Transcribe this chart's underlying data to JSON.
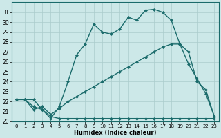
{
  "title": "",
  "xlabel": "Humidex (Indice chaleur)",
  "xlim": [
    -0.5,
    23.5
  ],
  "ylim": [
    20,
    32
  ],
  "xticks": [
    0,
    1,
    2,
    3,
    4,
    5,
    6,
    7,
    8,
    9,
    10,
    11,
    12,
    13,
    14,
    15,
    16,
    17,
    18,
    19,
    20,
    21,
    22,
    23
  ],
  "yticks": [
    20,
    21,
    22,
    23,
    24,
    25,
    26,
    27,
    28,
    29,
    30,
    31
  ],
  "bg_color": "#cce8e8",
  "grid_color": "#aacccc",
  "line_color": "#1a6b6b",
  "line1_x": [
    0,
    1,
    2,
    3,
    4,
    5,
    6,
    7,
    8,
    9,
    10,
    11,
    12,
    13,
    14,
    15,
    16,
    17,
    18,
    19,
    20,
    21,
    22,
    23
  ],
  "line1_y": [
    22.2,
    22.2,
    22.2,
    21.2,
    20.5,
    20.3,
    20.3,
    20.3,
    20.3,
    20.3,
    20.3,
    20.3,
    20.3,
    20.3,
    20.3,
    20.3,
    20.3,
    20.3,
    20.3,
    20.3,
    20.3,
    20.3,
    20.3,
    20.3
  ],
  "line2_x": [
    0,
    1,
    2,
    3,
    4,
    5,
    6,
    7,
    8,
    9,
    10,
    11,
    12,
    13,
    14,
    15,
    16,
    17,
    18,
    19,
    20,
    21,
    22,
    23
  ],
  "line2_y": [
    22.2,
    22.2,
    21.2,
    21.5,
    20.7,
    21.3,
    22.0,
    22.5,
    23.0,
    23.5,
    24.0,
    24.5,
    25.0,
    25.5,
    26.0,
    26.5,
    27.0,
    27.5,
    27.8,
    27.8,
    25.8,
    24.3,
    22.8,
    20.5
  ],
  "line3_x": [
    0,
    1,
    2,
    3,
    4,
    5,
    6,
    7,
    8,
    9,
    10,
    11,
    12,
    13,
    14,
    15,
    16,
    17,
    18,
    19,
    20,
    21,
    22,
    23
  ],
  "line3_y": [
    22.2,
    22.2,
    21.5,
    21.2,
    20.3,
    21.5,
    24.0,
    26.7,
    27.8,
    29.8,
    29.0,
    28.8,
    29.3,
    30.5,
    30.2,
    31.2,
    31.3,
    31.0,
    30.2,
    27.8,
    27.0,
    24.0,
    23.2,
    20.5
  ],
  "marker": "D",
  "markersize": 2.0,
  "linewidth": 1.0
}
